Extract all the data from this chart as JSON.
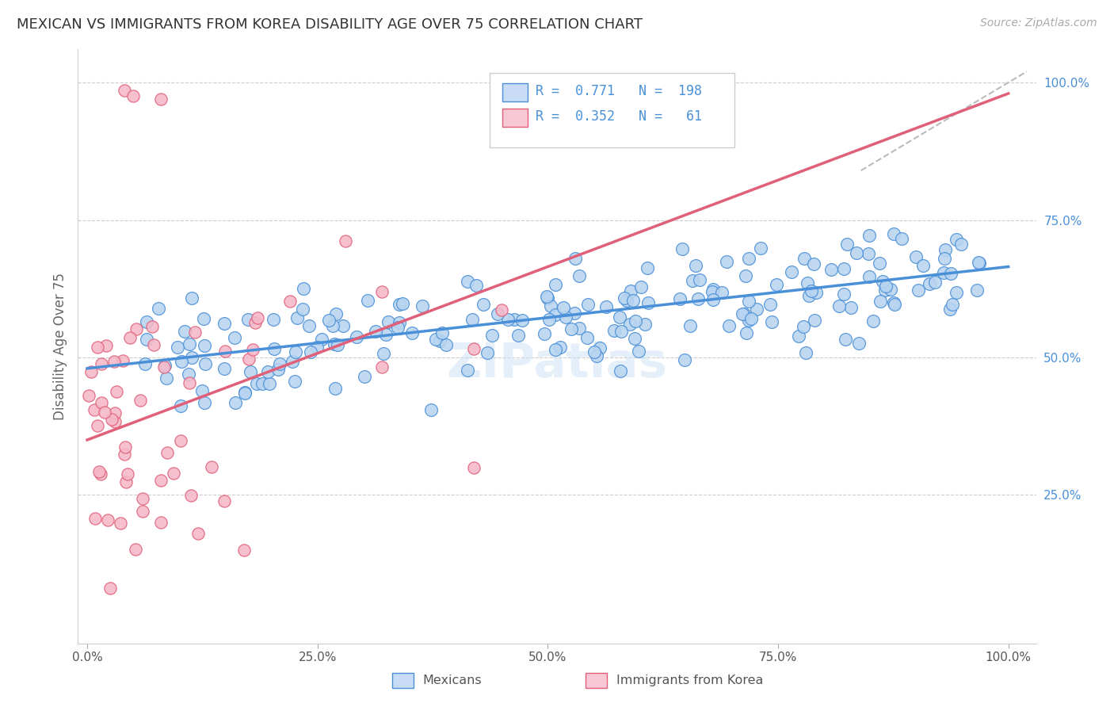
{
  "title": "MEXICAN VS IMMIGRANTS FROM KOREA DISABILITY AGE OVER 75 CORRELATION CHART",
  "source": "Source: ZipAtlas.com",
  "ylabel": "Disability Age Over 75",
  "blue_color": "#4a90d9",
  "pink_color": "#e0607a",
  "blue_scatter_face": "#b8d4f0",
  "pink_scatter_face": "#f5b8c8",
  "legend_blue_fill": "#c8dcf5",
  "legend_pink_fill": "#f8c8d4",
  "watermark": "ZIPatlas",
  "right_tick_color": "#4a90d9",
  "blue_line": [
    0.0,
    0.48,
    1.0,
    0.665
  ],
  "pink_line": [
    0.0,
    0.35,
    1.0,
    0.98
  ],
  "diag_line": [
    0.84,
    0.84,
    1.02,
    1.02
  ],
  "xlim": [
    -0.01,
    1.03
  ],
  "ylim": [
    -0.02,
    1.06
  ],
  "x_ticks": [
    0.0,
    0.25,
    0.5,
    0.75,
    1.0
  ],
  "x_tick_labels": [
    "0.0%",
    "25.0%",
    "50.0%",
    "75.0%",
    "100.0%"
  ],
  "y_ticks_right": [
    0.25,
    0.5,
    0.75,
    1.0
  ],
  "y_tick_labels_right": [
    "25.0%",
    "50.0%",
    "75.0%",
    "100.0%"
  ],
  "legend_R1": "R =  0.771",
  "legend_N1": "N =  198",
  "legend_R2": "R =  0.352",
  "legend_N2": "N =   61"
}
